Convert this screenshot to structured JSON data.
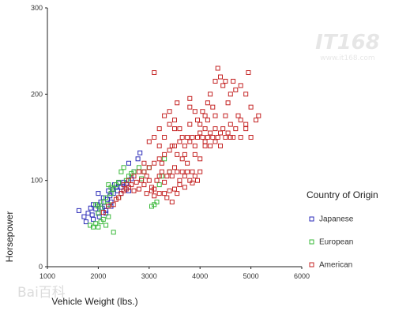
{
  "chart_data": {
    "type": "scatter",
    "xlabel": "Vehicle Weight (lbs.)",
    "ylabel": "Horsepower",
    "xlim": [
      1000,
      6000
    ],
    "ylim": [
      0,
      300
    ],
    "xticks": [
      1000,
      2000,
      3000,
      4000,
      5000,
      6000
    ],
    "yticks": [
      0,
      100,
      200,
      300
    ],
    "legend": {
      "title": "Country of Origin",
      "position": "right"
    },
    "series": [
      {
        "name": "Japanese",
        "color": "#2a2ab8",
        "points": [
          [
            1620,
            65
          ],
          [
            1720,
            58
          ],
          [
            1760,
            52
          ],
          [
            1800,
            62
          ],
          [
            1850,
            68
          ],
          [
            1880,
            60
          ],
          [
            1900,
            55
          ],
          [
            1950,
            67
          ],
          [
            1980,
            72
          ],
          [
            2000,
            62
          ],
          [
            2020,
            58
          ],
          [
            2050,
            75
          ],
          [
            2080,
            68
          ],
          [
            2100,
            80
          ],
          [
            2120,
            70
          ],
          [
            2150,
            65
          ],
          [
            2180,
            78
          ],
          [
            2200,
            88
          ],
          [
            2230,
            82
          ],
          [
            2250,
            75
          ],
          [
            2280,
            90
          ],
          [
            2300,
            85
          ],
          [
            2320,
            95
          ],
          [
            2350,
            92
          ],
          [
            2380,
            88
          ],
          [
            2400,
            97
          ],
          [
            2450,
            92
          ],
          [
            2500,
            98
          ],
          [
            2550,
            96
          ],
          [
            2600,
            88
          ],
          [
            2650,
            102
          ],
          [
            2700,
            110
          ],
          [
            2780,
            125
          ],
          [
            2820,
            132
          ],
          [
            2150,
            62
          ],
          [
            2250,
            70
          ],
          [
            1900,
            72
          ],
          [
            2000,
            85
          ],
          [
            2450,
            85
          ],
          [
            2600,
            120
          ]
        ]
      },
      {
        "name": "European",
        "color": "#3ab83a",
        "points": [
          [
            1840,
            48
          ],
          [
            1900,
            46
          ],
          [
            1950,
            50
          ],
          [
            2000,
            46
          ],
          [
            2050,
            52
          ],
          [
            2100,
            55
          ],
          [
            2150,
            48
          ],
          [
            2200,
            58
          ],
          [
            1950,
            72
          ],
          [
            2000,
            70
          ],
          [
            2050,
            68
          ],
          [
            2100,
            75
          ],
          [
            2150,
            80
          ],
          [
            2200,
            72
          ],
          [
            2250,
            85
          ],
          [
            2300,
            90
          ],
          [
            2350,
            95
          ],
          [
            2400,
            98
          ],
          [
            2450,
            110
          ],
          [
            2500,
            115
          ],
          [
            2550,
            100
          ],
          [
            2600,
            105
          ],
          [
            2700,
            110
          ],
          [
            2800,
            115
          ],
          [
            2900,
            110
          ],
          [
            3000,
            115
          ],
          [
            3050,
            70
          ],
          [
            3100,
            72
          ],
          [
            3200,
            95
          ],
          [
            3250,
            105
          ],
          [
            3300,
            125
          ],
          [
            3400,
            110
          ],
          [
            2200,
            95
          ],
          [
            2250,
            92
          ],
          [
            2650,
            108
          ],
          [
            2850,
            102
          ],
          [
            3150,
            75
          ],
          [
            2300,
            40
          ],
          [
            2000,
            62
          ],
          [
            2400,
            80
          ]
        ]
      },
      {
        "name": "American",
        "color": "#c42424",
        "points": [
          [
            2100,
            63
          ],
          [
            2200,
            70
          ],
          [
            2300,
            72
          ],
          [
            2350,
            78
          ],
          [
            2400,
            80
          ],
          [
            2450,
            85
          ],
          [
            2500,
            88
          ],
          [
            2550,
            90
          ],
          [
            2600,
            92
          ],
          [
            2650,
            95
          ],
          [
            2700,
            88
          ],
          [
            2750,
            98
          ],
          [
            2800,
            90
          ],
          [
            2850,
            100
          ],
          [
            2900,
            95
          ],
          [
            2950,
            105
          ],
          [
            3000,
            100
          ],
          [
            3050,
            92
          ],
          [
            3100,
            90
          ],
          [
            3150,
            100
          ],
          [
            3200,
            105
          ],
          [
            3250,
            110
          ],
          [
            3300,
            98
          ],
          [
            3350,
            105
          ],
          [
            3400,
            110
          ],
          [
            3450,
            105
          ],
          [
            3500,
            115
          ],
          [
            3550,
            110
          ],
          [
            3600,
            100
          ],
          [
            3650,
            110
          ],
          [
            3700,
            105
          ],
          [
            3750,
            110
          ],
          [
            3800,
            100
          ],
          [
            3850,
            110
          ],
          [
            3900,
            105
          ],
          [
            3950,
            100
          ],
          [
            4000,
            110
          ],
          [
            3300,
            85
          ],
          [
            3350,
            80
          ],
          [
            3400,
            88
          ],
          [
            3450,
            75
          ],
          [
            3500,
            90
          ],
          [
            3550,
            85
          ],
          [
            2900,
            110
          ],
          [
            3000,
            115
          ],
          [
            3100,
            120
          ],
          [
            3200,
            125
          ],
          [
            3250,
            120
          ],
          [
            3300,
            130
          ],
          [
            3400,
            135
          ],
          [
            3500,
            140
          ],
          [
            3550,
            130
          ],
          [
            3600,
            145
          ],
          [
            3650,
            150
          ],
          [
            3700,
            140
          ],
          [
            3750,
            150
          ],
          [
            3800,
            145
          ],
          [
            3850,
            150
          ],
          [
            3900,
            140
          ],
          [
            3950,
            150
          ],
          [
            4000,
            155
          ],
          [
            4050,
            150
          ],
          [
            4100,
            145
          ],
          [
            4150,
            150
          ],
          [
            4200,
            155
          ],
          [
            4250,
            150
          ],
          [
            4300,
            160
          ],
          [
            4350,
            150
          ],
          [
            4400,
            155
          ],
          [
            4450,
            160
          ],
          [
            4500,
            150
          ],
          [
            4550,
            155
          ],
          [
            4600,
            165
          ],
          [
            4650,
            150
          ],
          [
            4700,
            160
          ],
          [
            4750,
            175
          ],
          [
            4800,
            170
          ],
          [
            4900,
            165
          ],
          [
            5000,
            150
          ],
          [
            5100,
            170
          ],
          [
            5150,
            175
          ],
          [
            3100,
            225
          ],
          [
            3800,
            195
          ],
          [
            3900,
            180
          ],
          [
            3950,
            170
          ],
          [
            4000,
            165
          ],
          [
            4050,
            180
          ],
          [
            4100,
            175
          ],
          [
            4150,
            190
          ],
          [
            4200,
            200
          ],
          [
            4250,
            185
          ],
          [
            4300,
            215
          ],
          [
            4350,
            230
          ],
          [
            4400,
            220
          ],
          [
            4450,
            210
          ],
          [
            4500,
            215
          ],
          [
            4550,
            190
          ],
          [
            4600,
            200
          ],
          [
            4650,
            215
          ],
          [
            4700,
            205
          ],
          [
            4800,
            210
          ],
          [
            4900,
            200
          ],
          [
            4950,
            225
          ],
          [
            4500,
            175
          ],
          [
            4300,
            175
          ],
          [
            4100,
            160
          ],
          [
            3800,
            165
          ],
          [
            3600,
            160
          ],
          [
            3400,
            165
          ],
          [
            3300,
            150
          ],
          [
            3200,
            160
          ],
          [
            3500,
            160
          ],
          [
            3700,
            130
          ],
          [
            3900,
            130
          ],
          [
            4000,
            125
          ],
          [
            3500,
            170
          ],
          [
            3400,
            180
          ],
          [
            3300,
            175
          ],
          [
            3550,
            190
          ],
          [
            3800,
            185
          ],
          [
            4100,
            140
          ],
          [
            4200,
            140
          ],
          [
            4400,
            140
          ],
          [
            3000,
            145
          ],
          [
            3100,
            150
          ],
          [
            3200,
            140
          ],
          [
            2900,
            120
          ],
          [
            2800,
            110
          ],
          [
            2700,
            105
          ],
          [
            2600,
            100
          ],
          [
            2500,
            95
          ],
          [
            3200,
            85
          ],
          [
            3100,
            82
          ],
          [
            3600,
            95
          ],
          [
            3700,
            92
          ],
          [
            3850,
            97
          ],
          [
            2950,
            85
          ],
          [
            3050,
            88
          ],
          [
            4300,
            145
          ],
          [
            4600,
            150
          ],
          [
            4800,
            150
          ],
          [
            4900,
            160
          ],
          [
            5000,
            185
          ],
          [
            3650,
            125
          ],
          [
            3750,
            120
          ],
          [
            3450,
            140
          ],
          [
            4150,
            170
          ]
        ]
      }
    ]
  },
  "watermarks": {
    "top_right": "IT168",
    "top_right_sub": "www.it168.com",
    "bottom_left": "Bai百科"
  }
}
